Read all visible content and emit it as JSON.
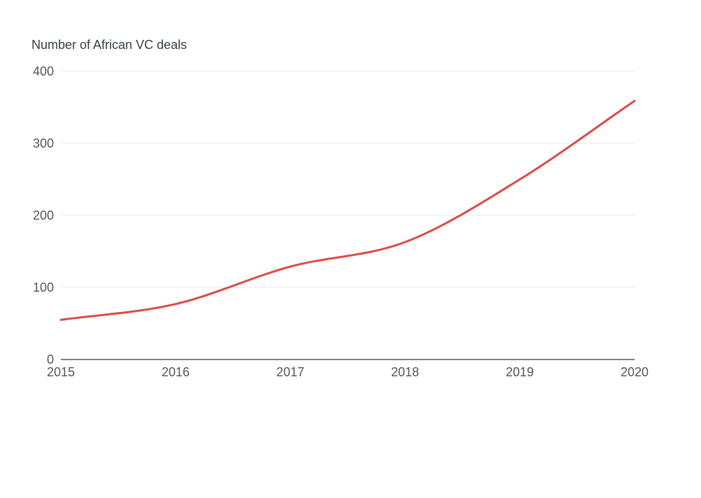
{
  "chart_data": {
    "type": "line",
    "title": "Number of African VC deals",
    "xlabel": "",
    "ylabel": "",
    "x": [
      2015,
      2016,
      2017,
      2018,
      2019,
      2020
    ],
    "xticks": [
      "2015",
      "2016",
      "2017",
      "2018",
      "2019",
      "2020"
    ],
    "yticks": [
      "0",
      "100",
      "200",
      "300",
      "400"
    ],
    "ytick_values": [
      0,
      100,
      200,
      300,
      400
    ],
    "ylim": [
      0,
      400
    ],
    "xlim": [
      2015,
      2020
    ],
    "grid": true,
    "smooth": true,
    "series": [
      {
        "values": [
          55,
          77,
          129,
          163,
          250,
          359
        ],
        "color": "#dc4a47"
      }
    ],
    "colors": {
      "gridline": "#ebebeb",
      "baseline": "#333333",
      "title": "#333e48",
      "tick_label": "#555555"
    }
  }
}
